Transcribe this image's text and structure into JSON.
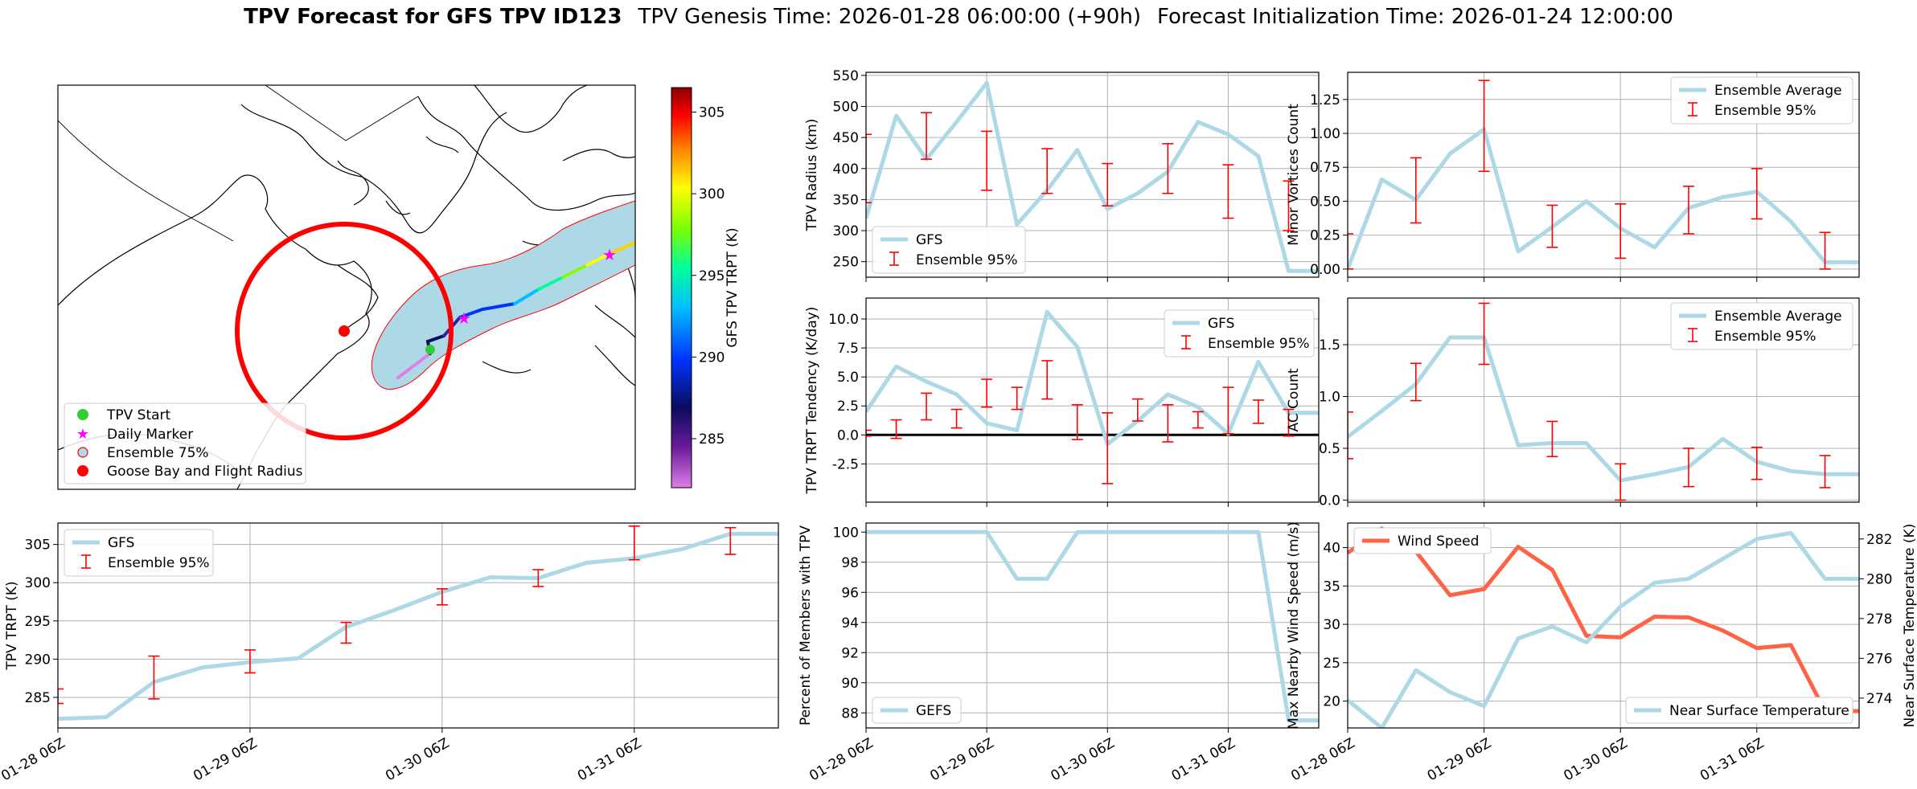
{
  "figure": {
    "title_bold": "TPV Forecast for GFS TPV ID123",
    "title_genesis": "TPV Genesis Time: 2026-01-28 06:00:00 (+90h)",
    "title_init": "Forecast Initialization Time: 2026-01-24 12:00:00"
  },
  "colors": {
    "gfs_line": "#add8e6",
    "ensemble_err": "#ff0000",
    "wind": "#ff6347",
    "temp_axis": "#4169e1",
    "circle": "#ff0000",
    "cone_fill": "#add8e6",
    "cone_edge": "#ff0000",
    "start_marker": "#32cd32",
    "daily_marker": "#ff00ff",
    "goose_bay": "#ff0000"
  },
  "map": {
    "legend": [
      "TPV Start",
      "Daily Marker",
      "Ensemble 75%",
      "Goose Bay and Flight Radius"
    ],
    "colorbar_label": "GFS TPV TRPT (K)",
    "colorbar_ticks": [
      285,
      290,
      295,
      300,
      305
    ],
    "colorbar_range": [
      282,
      306.5
    ]
  },
  "chart_data": [
    {
      "id": "radius",
      "type": "line",
      "ylabel": "TPV Radius (km)",
      "ylim": [
        225,
        555
      ],
      "yticks": [
        250,
        300,
        350,
        400,
        450,
        500,
        550
      ],
      "xlim": [
        0,
        15
      ],
      "series": [
        {
          "name": "GFS",
          "x": [
            0,
            1,
            2,
            3,
            4,
            5,
            6,
            7,
            8,
            9,
            10,
            11,
            12,
            13,
            14,
            15
          ],
          "values": [
            320,
            485,
            415,
            475,
            538,
            310,
            365,
            430,
            335,
            360,
            395,
            475,
            455,
            420,
            235,
            235
          ]
        }
      ],
      "errorbars": {
        "name": "Ensemble 95%",
        "x": [
          0,
          2,
          4,
          6,
          8,
          10,
          12,
          14
        ],
        "low": [
          345,
          415,
          365,
          360,
          340,
          360,
          320,
          300
        ],
        "high": [
          455,
          490,
          460,
          432,
          408,
          440,
          406,
          380
        ]
      },
      "legend_loc": "lower left",
      "grid": true
    },
    {
      "id": "minor",
      "type": "line",
      "ylabel": "Minor Vortices Count",
      "ylim": [
        -0.06,
        1.45
      ],
      "yticks": [
        "0.00",
        "0.25",
        "0.50",
        "0.75",
        "1.00",
        "1.25"
      ],
      "xlim": [
        0,
        15
      ],
      "series": [
        {
          "name": "Ensemble Average",
          "x": [
            0,
            1,
            2,
            3,
            4,
            5,
            6,
            7,
            8,
            9,
            10,
            11,
            12,
            13,
            14,
            15
          ],
          "values": [
            0.0,
            0.66,
            0.51,
            0.85,
            1.03,
            0.13,
            0.31,
            0.5,
            0.3,
            0.16,
            0.45,
            0.53,
            0.57,
            0.35,
            0.05,
            0.05
          ]
        }
      ],
      "errorbars": {
        "name": "Ensemble 95%",
        "x": [
          0,
          2,
          4,
          6,
          8,
          10,
          12,
          14
        ],
        "low": [
          0,
          0.34,
          0.72,
          0.16,
          0.08,
          0.26,
          0.37,
          0.0
        ],
        "high": [
          0.26,
          0.82,
          1.39,
          0.47,
          0.48,
          0.61,
          0.74,
          0.27
        ]
      },
      "legend_loc": "upper right",
      "grid": true
    },
    {
      "id": "tendency",
      "type": "line",
      "ylabel": "TPV TRPT Tendency (K/day)",
      "ylim": [
        -5.8,
        11.8
      ],
      "yticks": [
        "-2.5",
        "0.0",
        "2.5",
        "5.0",
        "7.5",
        "10.0"
      ],
      "xlim": [
        0,
        15
      ],
      "series": [
        {
          "name": "GFS",
          "x": [
            0,
            1,
            2,
            3,
            4,
            5,
            6,
            7,
            8,
            9,
            10,
            11,
            12,
            13,
            14,
            15
          ],
          "values": [
            2.0,
            5.9,
            4.6,
            3.5,
            1.0,
            0.4,
            10.6,
            7.6,
            -0.8,
            1.2,
            3.5,
            2.4,
            0.1,
            6.3,
            1.9,
            1.9
          ]
        }
      ],
      "errorbars": {
        "name": "Ensemble 95%",
        "x": [
          0,
          1,
          2,
          3,
          4,
          5,
          6,
          7,
          8,
          9,
          10,
          11,
          12,
          13,
          14
        ],
        "low": [
          -0.1,
          -0.3,
          1.3,
          0.6,
          2.4,
          2.2,
          3.1,
          -0.4,
          -4.2,
          1.2,
          -0.6,
          0.6,
          0.1,
          1.0,
          -0.1
        ],
        "high": [
          0.4,
          1.3,
          3.6,
          2.2,
          4.8,
          4.1,
          6.4,
          2.6,
          1.9,
          3.1,
          2.6,
          2.0,
          4.1,
          3.0,
          2.2
        ]
      },
      "zero_line": true,
      "legend_loc": "upper right",
      "grid": true
    },
    {
      "id": "ac",
      "type": "line",
      "ylabel": "AC Count",
      "ylim": [
        -0.02,
        1.95
      ],
      "yticks": [
        "0.0",
        "0.5",
        "1.0",
        "1.5"
      ],
      "xlim": [
        0,
        15
      ],
      "series": [
        {
          "name": "Ensemble Average",
          "x": [
            0,
            1,
            2,
            3,
            4,
            5,
            6,
            7,
            8,
            9,
            10,
            11,
            12,
            13,
            14,
            15
          ],
          "values": [
            0.61,
            0.86,
            1.12,
            1.57,
            1.57,
            0.53,
            0.55,
            0.55,
            0.19,
            0.25,
            0.32,
            0.59,
            0.37,
            0.28,
            0.25,
            0.25
          ]
        }
      ],
      "errorbars": {
        "name": "Ensemble 95%",
        "x": [
          0,
          2,
          4,
          6,
          8,
          10,
          12,
          14
        ],
        "low": [
          0.4,
          0.96,
          1.31,
          0.42,
          0.0,
          0.13,
          0.2,
          0.12
        ],
        "high": [
          0.85,
          1.32,
          1.9,
          0.76,
          0.35,
          0.5,
          0.51,
          0.43
        ]
      },
      "legend_loc": "upper right",
      "grid": true
    },
    {
      "id": "trpt",
      "type": "line",
      "ylabel": "TPV TRPT (K)",
      "ylim": [
        281.0,
        307.8
      ],
      "yticks": [
        285,
        290,
        295,
        300,
        305
      ],
      "xlim": [
        0,
        15
      ],
      "xticks": {
        "positions": [
          0,
          4,
          8,
          12
        ],
        "labels": [
          "01-28 06Z",
          "01-29 06Z",
          "01-30 06Z",
          "01-31 06Z"
        ]
      },
      "series": [
        {
          "name": "GFS",
          "x": [
            0,
            1,
            2,
            3,
            4,
            5,
            6,
            7,
            8,
            9,
            10,
            11,
            12,
            13,
            14,
            15
          ],
          "values": [
            282.2,
            282.4,
            287.0,
            288.9,
            289.6,
            290.1,
            294.2,
            296.4,
            298.8,
            300.7,
            300.6,
            302.6,
            303.2,
            304.4,
            306.4,
            306.4
          ]
        }
      ],
      "errorbars": {
        "name": "Ensemble 95%",
        "x": [
          0,
          2,
          4,
          6,
          8,
          10,
          12,
          14
        ],
        "low": [
          284.2,
          284.8,
          288.2,
          292.1,
          297.1,
          299.5,
          303.0,
          303.7
        ],
        "high": [
          286.1,
          290.4,
          291.2,
          294.8,
          299.2,
          301.7,
          307.4,
          307.2
        ]
      },
      "legend_loc": "upper left",
      "grid": true
    },
    {
      "id": "percent",
      "type": "line",
      "ylabel": "Percent of Members with TPV",
      "ylim": [
        87.0,
        100.6
      ],
      "yticks": [
        88,
        90,
        92,
        94,
        96,
        98,
        100
      ],
      "xlim": [
        0,
        15
      ],
      "xticks": {
        "positions": [
          0,
          4,
          8,
          12
        ],
        "labels": [
          "01-28 06Z",
          "01-29 06Z",
          "01-30 06Z",
          "01-31 06Z"
        ]
      },
      "series": [
        {
          "name": "GEFS",
          "x": [
            0,
            1,
            2,
            3,
            4,
            5,
            6,
            7,
            8,
            9,
            10,
            11,
            12,
            13,
            14,
            15
          ],
          "values": [
            100,
            100,
            100,
            100,
            100,
            96.9,
            96.9,
            100,
            100,
            100,
            100,
            100,
            100,
            100,
            87.5,
            87.5
          ]
        }
      ],
      "legend_loc": "lower left",
      "grid": true
    },
    {
      "id": "wind_temp",
      "type": "line",
      "ylabel": "Max Nearby Wind Speed (m/s)",
      "ylabel_right": "Near Surface Temperature (K)",
      "ylim": [
        16.5,
        43.2
      ],
      "yticks": [
        20,
        25,
        30,
        35,
        40
      ],
      "ylim_right": [
        272.5,
        282.8
      ],
      "yticks_right": [
        274,
        276,
        278,
        280,
        282
      ],
      "xlim": [
        0,
        15
      ],
      "xticks": {
        "positions": [
          0,
          4,
          8,
          12
        ],
        "labels": [
          "01-28 06Z",
          "01-29 06Z",
          "01-30 06Z",
          "01-31 06Z"
        ]
      },
      "series": [
        {
          "name": "Wind Speed",
          "axis": "left",
          "x": [
            0,
            1,
            2,
            3,
            4,
            5,
            6,
            7,
            8,
            9,
            10,
            11,
            12,
            13,
            14,
            15
          ],
          "values": [
            39.3,
            42.5,
            39.5,
            33.8,
            34.6,
            40.1,
            37.1,
            28.5,
            28.3,
            31.0,
            30.9,
            29.2,
            26.9,
            27.3,
            18.7,
            18.7
          ]
        },
        {
          "name": "Near Surface Temperature",
          "axis": "right",
          "x": [
            0,
            1,
            2,
            3,
            4,
            5,
            6,
            7,
            8,
            9,
            10,
            11,
            12,
            13,
            14,
            15
          ],
          "values": [
            273.9,
            272.5,
            275.4,
            274.3,
            273.6,
            277.0,
            277.6,
            276.8,
            278.6,
            279.8,
            280.0,
            281.0,
            282.0,
            282.3,
            280.0,
            280.0
          ]
        }
      ],
      "legend_loc": "upper left / lower right",
      "grid": true
    }
  ]
}
